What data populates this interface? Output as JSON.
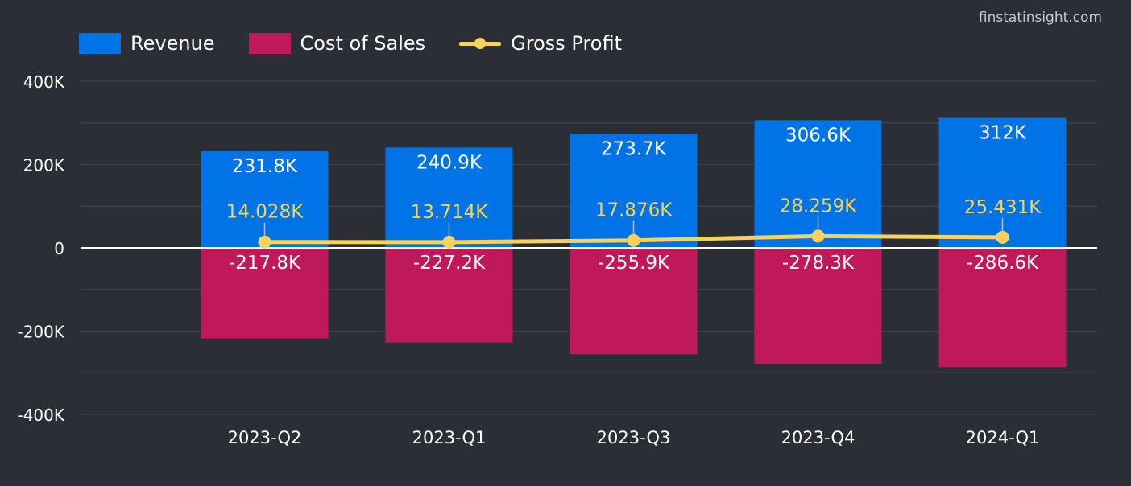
{
  "watermark": "finstatinsight.com",
  "legend": {
    "revenue": "Revenue",
    "cost": "Cost of Sales",
    "profit": "Gross Profit"
  },
  "colors": {
    "revenue": "#0073e6",
    "cost": "#c0195a",
    "profit": "#f7d35c",
    "grid": "#3d4048",
    "zero_line": "#ffffff",
    "background": "#2c2e36"
  },
  "chart_data": {
    "type": "bar",
    "categories": [
      "2023-Q2",
      "2023-Q1",
      "2023-Q3",
      "2023-Q4",
      "2024-Q1"
    ],
    "series": [
      {
        "name": "Revenue",
        "type": "bar",
        "values": [
          231800,
          240900,
          273700,
          306600,
          312000
        ],
        "labels": [
          "231.8K",
          "240.9K",
          "273.7K",
          "306.6K",
          "312K"
        ]
      },
      {
        "name": "Cost of Sales",
        "type": "bar",
        "values": [
          -217800,
          -227200,
          -255900,
          -278300,
          -286600
        ],
        "labels": [
          "-217.8K",
          "-227.2K",
          "-255.9K",
          "-278.3K",
          "-286.6K"
        ]
      },
      {
        "name": "Gross Profit",
        "type": "line",
        "values": [
          14028,
          13714,
          17876,
          28259,
          25431
        ],
        "labels": [
          "14.028K",
          "13.714K",
          "17.876K",
          "28.259K",
          "25.431K"
        ]
      }
    ],
    "ylim": [
      -400000,
      400000
    ],
    "yticks": [
      400000,
      200000,
      0,
      -200000,
      -400000
    ],
    "ytick_labels": [
      "400K",
      "200K",
      "0",
      "-200K",
      "-400K"
    ],
    "grid": true,
    "legend_position": "top-left"
  }
}
